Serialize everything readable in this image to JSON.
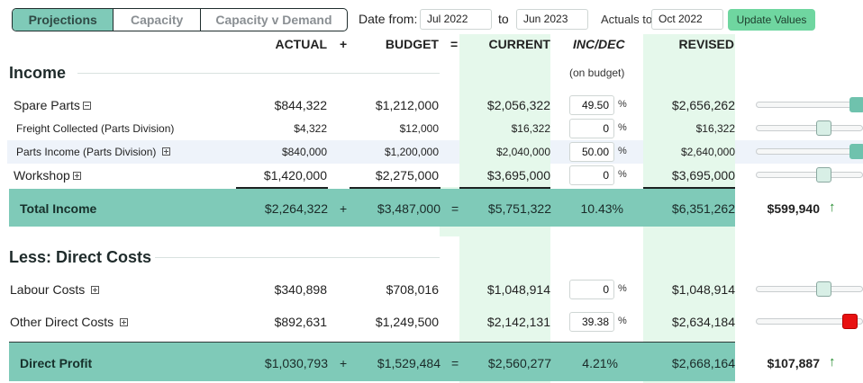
{
  "tabs": [
    {
      "label": "Projections",
      "active": true
    },
    {
      "label": "Capacity",
      "active": false
    },
    {
      "label": "Capacity v Demand",
      "active": false
    }
  ],
  "controls": {
    "date_from_label": "Date from:",
    "date_from": "Jul 2022",
    "to_label": "to",
    "date_to": "Jun 2023",
    "actuals_to_label": "Actuals to",
    "actuals_to": "Oct 2022",
    "update_label": "Update Values"
  },
  "headers": {
    "actual": "ACTUAL",
    "plus": "+",
    "budget": "BUDGET",
    "equals": "=",
    "current": "CURRENT",
    "incdec": "INC/DEC",
    "incdec_note": "(on budget)",
    "revised": "REVISED"
  },
  "income": {
    "title": "Income",
    "rows": [
      {
        "label": "Spare Parts",
        "actual": "$844,322",
        "budget": "$1,212,000",
        "current": "$2,056,322",
        "pct": "49.50",
        "pct_sign": "%",
        "revised": "$2,656,262",
        "slider": 1.0
      },
      {
        "label": "Freight Collected  (Parts Division)",
        "actual": "$4,322",
        "budget": "$12,000",
        "current": "$16,322",
        "pct": "0",
        "pct_sign": "%",
        "revised": "$16,322",
        "slider": 0.63
      },
      {
        "label": "Parts Income  (Parts Division)",
        "actual": "$840,000",
        "budget": "$1,200,000",
        "current": "$2,040,000",
        "pct": "50.00",
        "pct_sign": "%",
        "revised": "$2,640,000",
        "slider": 1.0
      },
      {
        "label": "Workshop",
        "actual": "$1,420,000",
        "budget": "$2,275,000",
        "current": "$3,695,000",
        "pct": "0",
        "pct_sign": "%",
        "revised": "$3,695,000",
        "slider": 0.63
      }
    ],
    "total": {
      "label": "Total Income",
      "actual": "$2,264,322",
      "plus": "+",
      "budget": "$3,487,000",
      "equals": "=",
      "current": "$5,751,322",
      "pct": "10.43%",
      "revised": "$6,351,262",
      "delta": "$599,940",
      "arrow": "↑"
    }
  },
  "costs": {
    "title": "Less: Direct Costs",
    "rows": [
      {
        "label": "Labour Costs",
        "actual": "$340,898",
        "budget": "$708,016",
        "current": "$1,048,914",
        "pct": "0",
        "pct_sign": "%",
        "revised": "$1,048,914",
        "slider": 0.63
      },
      {
        "label": "Other Direct Costs",
        "actual": "$892,631",
        "budget": "$1,249,500",
        "current": "$2,142,131",
        "pct": "39.38",
        "pct_sign": "%",
        "revised": "$2,634,184",
        "slider": 0.9
      }
    ],
    "total": {
      "label": "Direct Profit",
      "actual": "$1,030,793",
      "plus": "+",
      "budget": "$1,529,484",
      "equals": "=",
      "current": "$2,560,277",
      "pct": "4.21%",
      "revised": "$2,668,164",
      "delta": "$107,887",
      "arrow": "↑"
    }
  }
}
